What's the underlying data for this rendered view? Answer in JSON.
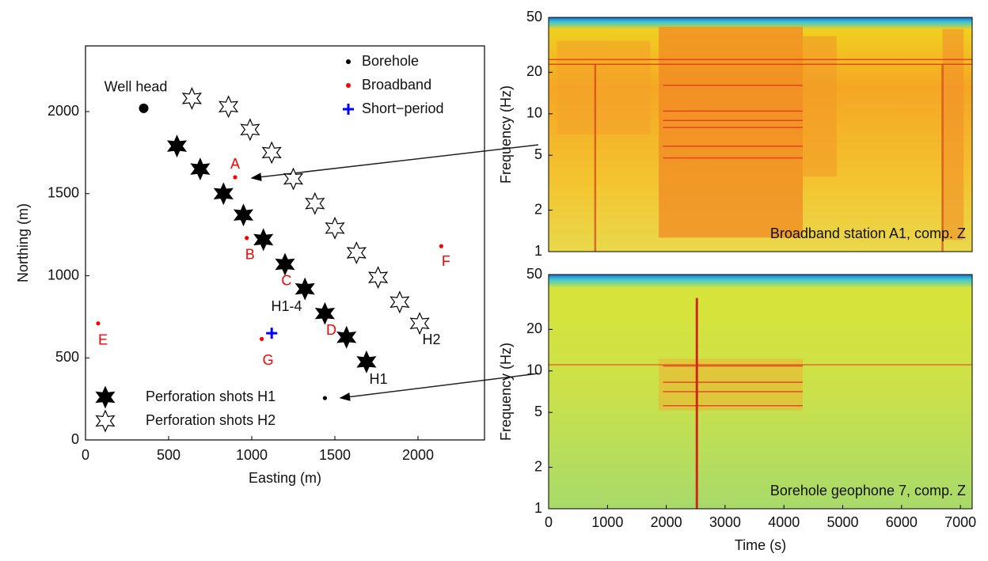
{
  "chart_data": [
    {
      "type": "scatter",
      "xlabel": "Easting (m)",
      "ylabel": "Northing (m)",
      "xlim": [
        0,
        2400
      ],
      "ylim": [
        0,
        2400
      ],
      "xticks": [
        0,
        500,
        1000,
        1500,
        2000
      ],
      "yticks": [
        0,
        500,
        1000,
        1500,
        2000
      ],
      "well_head": {
        "label": "Well head",
        "x": 350,
        "y": 2020
      },
      "series": [
        {
          "name": "Borehole",
          "color": "#000000",
          "marker": "dot",
          "x": [
            1440
          ],
          "y": [
            255
          ]
        },
        {
          "name": "Broadband",
          "color": "#ff0000",
          "marker": "dot",
          "x": [
            900,
            970,
            1190,
            1450,
            76,
            2140,
            1060
          ],
          "y": [
            1600,
            1230,
            1070,
            770,
            710,
            1180,
            615
          ],
          "labels": [
            "A",
            "B",
            "C",
            "D",
            "E",
            "F",
            "G"
          ]
        },
        {
          "name": "Short−period",
          "color": "#0000ff",
          "marker": "plus",
          "x": [
            1120
          ],
          "y": [
            650
          ]
        },
        {
          "name": "Perforation shots H1",
          "color": "#000000",
          "marker": "star-filled",
          "x": [
            550,
            690,
            830,
            950,
            1070,
            1200,
            1320,
            1440,
            1570,
            1690
          ],
          "y": [
            1790,
            1650,
            1500,
            1370,
            1220,
            1070,
            920,
            770,
            625,
            475
          ]
        },
        {
          "name": "Perforation shots H2",
          "color": "#000000",
          "marker": "star-open",
          "x": [
            640,
            860,
            990,
            1120,
            1250,
            1380,
            1500,
            1630,
            1760,
            1890,
            2010
          ],
          "y": [
            2080,
            2030,
            1890,
            1750,
            1590,
            1440,
            1290,
            1140,
            990,
            840,
            710
          ]
        }
      ],
      "annotations": [
        "H1-4",
        "H1",
        "H2"
      ]
    },
    {
      "type": "spectrogram",
      "title": "Broadband station A1, comp. Z",
      "ylabel": "Frequency (Hz)",
      "yscale": "log",
      "xlim": [
        0,
        7200
      ],
      "ylim": [
        1,
        50
      ],
      "yticks": [
        1,
        2,
        5,
        10,
        20,
        50
      ]
    },
    {
      "type": "spectrogram",
      "title": "Borehole geophone 7, comp. Z",
      "ylabel": "Frequency (Hz)",
      "xlabel": "Time (s)",
      "yscale": "log",
      "xlim": [
        0,
        7200
      ],
      "ylim": [
        1,
        50
      ],
      "yticks": [
        1,
        2,
        5,
        10,
        20,
        50
      ],
      "xticks": [
        0,
        1000,
        2000,
        3000,
        4000,
        5000,
        6000,
        7000
      ]
    }
  ]
}
